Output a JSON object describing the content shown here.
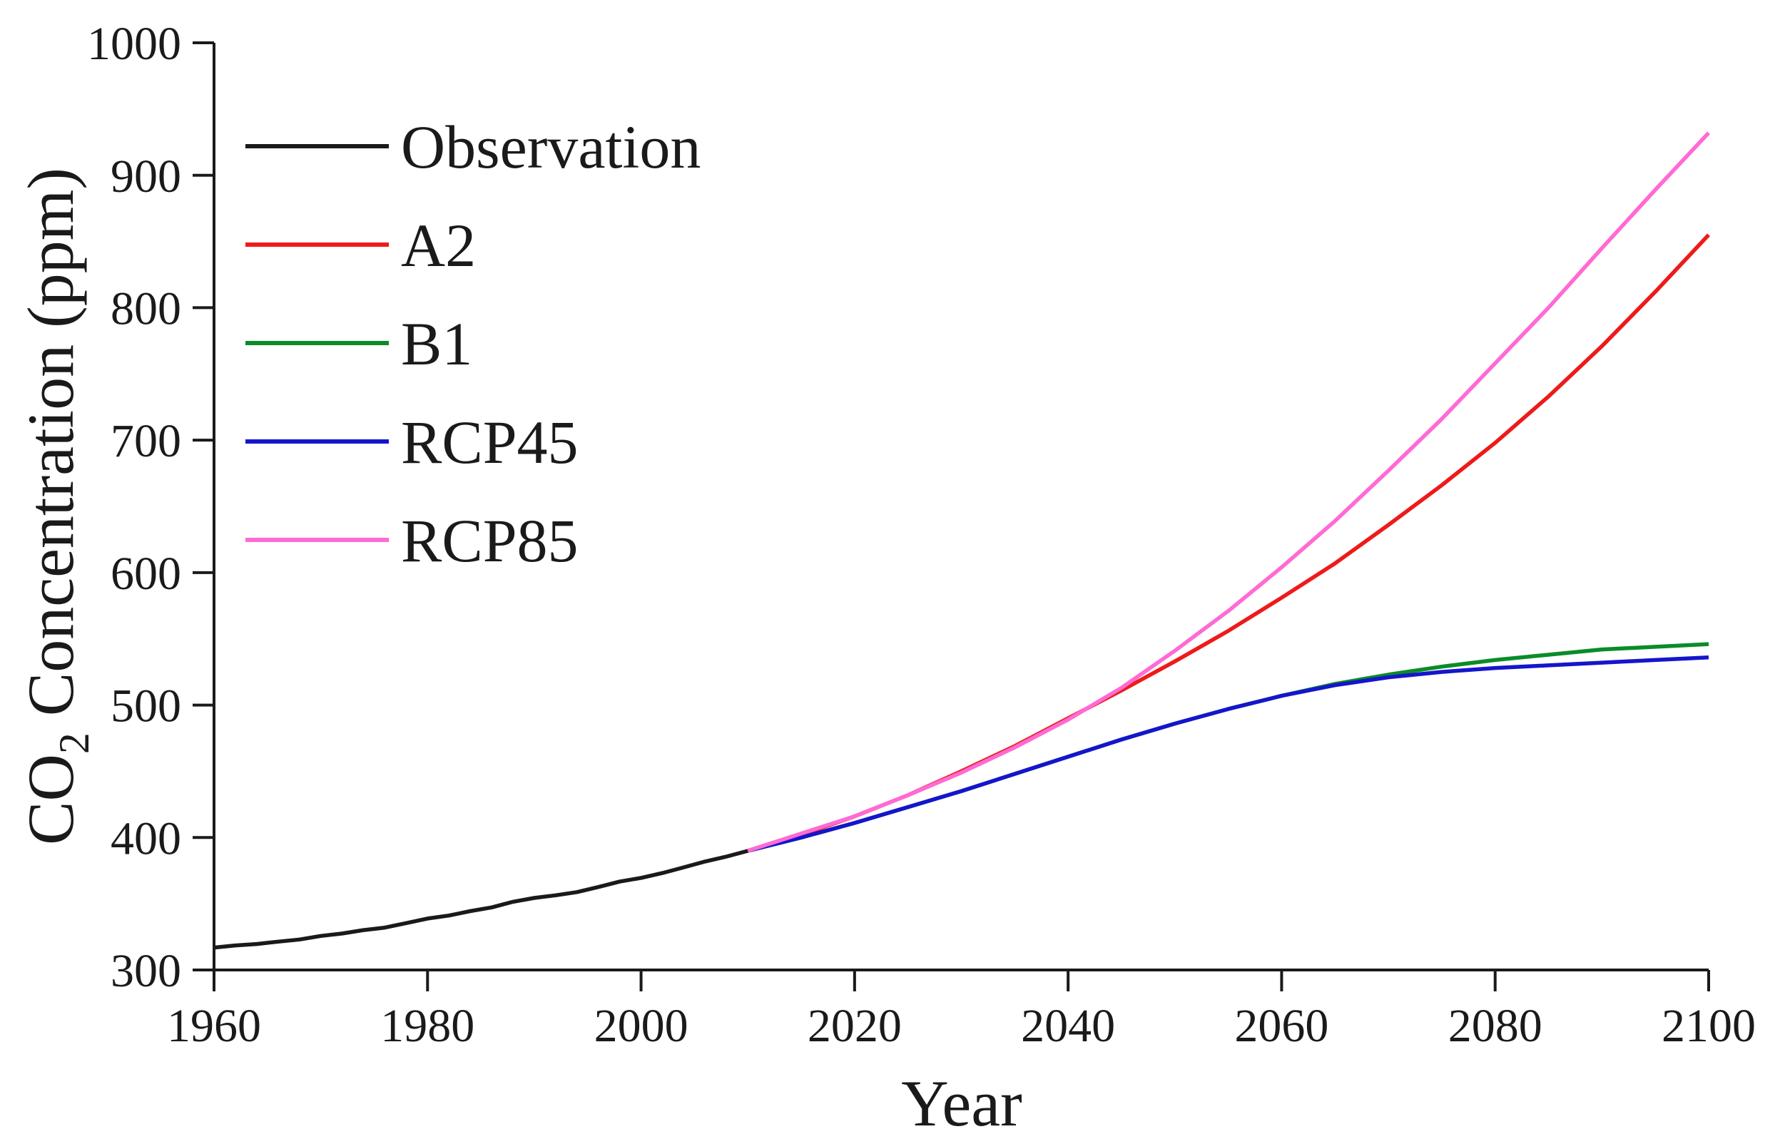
{
  "figure": {
    "background": "#ffffff",
    "text_color": "#1a1a1a"
  },
  "chart_data": {
    "type": "line",
    "title": "",
    "xlabel": "Year",
    "ylabel": "CO2 Concentration (ppm)",
    "ylabel_parts": {
      "base": "CO",
      "sub": "2",
      "rest": " Concentration (ppm)"
    },
    "xlim": [
      1960,
      2100
    ],
    "ylim": [
      300,
      1000
    ],
    "x_ticks": [
      1960,
      1980,
      2000,
      2020,
      2040,
      2060,
      2080,
      2100
    ],
    "y_ticks": [
      300,
      400,
      500,
      600,
      700,
      800,
      900,
      1000
    ],
    "grid": false,
    "legend_position": "upper-left",
    "axis_color": "#1a1a1a",
    "series": [
      {
        "name": "Observation",
        "color": "#1a1a1a",
        "x": [
          1960,
          1962,
          1964,
          1966,
          1968,
          1970,
          1972,
          1974,
          1976,
          1978,
          1980,
          1982,
          1984,
          1986,
          1988,
          1990,
          1992,
          1994,
          1996,
          1998,
          2000,
          2002,
          2004,
          2006,
          2008,
          2010
        ],
        "y": [
          316.9,
          318.5,
          319.6,
          321.4,
          323.0,
          325.7,
          327.5,
          330.1,
          332.0,
          335.4,
          338.8,
          341.1,
          344.4,
          347.2,
          351.5,
          354.4,
          356.4,
          358.8,
          362.6,
          366.7,
          369.5,
          373.2,
          377.5,
          381.9,
          385.6,
          389.9
        ]
      },
      {
        "name": "A2",
        "color": "#ee1a1a",
        "x": [
          2010,
          2015,
          2020,
          2025,
          2030,
          2035,
          2040,
          2045,
          2050,
          2055,
          2060,
          2065,
          2070,
          2075,
          2080,
          2085,
          2090,
          2095,
          2100
        ],
        "y": [
          390,
          402,
          416,
          432,
          450,
          469,
          490,
          511,
          533,
          556,
          581,
          607,
          636,
          666,
          698,
          733,
          771,
          812,
          855
        ]
      },
      {
        "name": "B1",
        "color": "#0a8c28",
        "x": [
          2010,
          2015,
          2020,
          2025,
          2030,
          2035,
          2040,
          2045,
          2050,
          2055,
          2060,
          2065,
          2070,
          2075,
          2080,
          2085,
          2090,
          2095,
          2100
        ],
        "y": [
          390,
          400,
          411,
          423,
          435,
          448,
          461,
          474,
          486,
          497,
          507,
          516,
          523,
          529,
          534,
          538,
          542,
          544,
          546
        ]
      },
      {
        "name": "RCP45",
        "color": "#1515cc",
        "x": [
          2010,
          2015,
          2020,
          2025,
          2030,
          2035,
          2040,
          2045,
          2050,
          2055,
          2060,
          2065,
          2070,
          2075,
          2080,
          2085,
          2090,
          2095,
          2100
        ],
        "y": [
          390,
          400,
          411,
          423,
          435,
          448,
          461,
          474,
          486,
          497,
          507,
          515,
          521,
          525,
          528,
          530,
          532,
          534,
          536
        ]
      },
      {
        "name": "RCP85",
        "color": "#ff6ad5",
        "x": [
          2010,
          2015,
          2020,
          2025,
          2030,
          2035,
          2040,
          2045,
          2050,
          2055,
          2060,
          2065,
          2070,
          2075,
          2080,
          2085,
          2090,
          2095,
          2100
        ],
        "y": [
          390,
          403,
          416,
          432,
          449,
          468,
          489,
          513,
          541,
          571,
          604,
          639,
          677,
          716,
          758,
          800,
          845,
          889,
          932
        ]
      }
    ]
  }
}
